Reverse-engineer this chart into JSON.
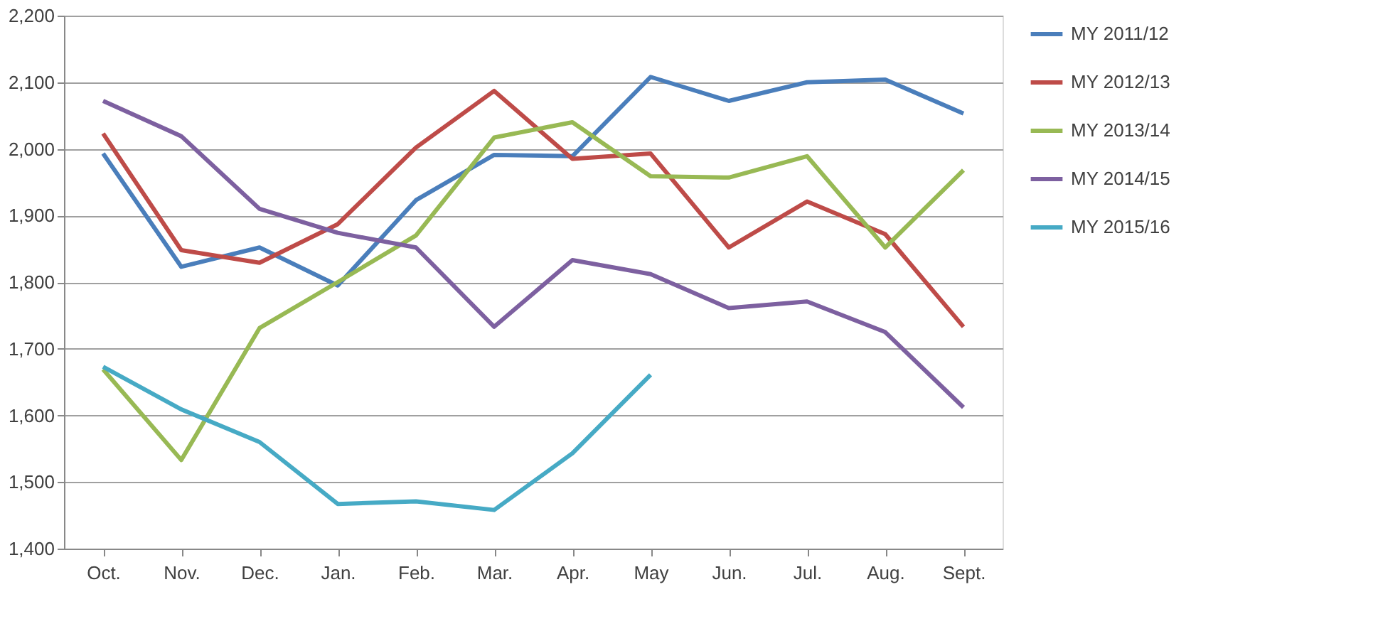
{
  "chart_data": {
    "type": "line",
    "categories": [
      "Oct.",
      "Nov.",
      "Dec.",
      "Jan.",
      "Feb.",
      "Mar.",
      "Apr.",
      "May",
      "Jun.",
      "Jul.",
      "Aug.",
      "Sept."
    ],
    "series": [
      {
        "name": "MY 2011/12",
        "color": "#4a7ebb",
        "values": [
          1993,
          1823,
          1852,
          1795,
          1923,
          1991,
          1989,
          2108,
          2072,
          2100,
          2104,
          2053
        ]
      },
      {
        "name": "MY 2012/13",
        "color": "#be4b48",
        "values": [
          2023,
          1848,
          1829,
          1887,
          2002,
          2087,
          1985,
          1993,
          1852,
          1921,
          1872,
          1733
        ]
      },
      {
        "name": "MY 2013/14",
        "color": "#98b954",
        "values": [
          1669,
          1533,
          1731,
          1800,
          1870,
          2017,
          2040,
          1959,
          1957,
          1989,
          1852,
          1968
        ]
      },
      {
        "name": "MY 2014/15",
        "color": "#7d60a0",
        "values": [
          2072,
          2019,
          1910,
          1874,
          1852,
          1733,
          1833,
          1812,
          1761,
          1771,
          1725,
          1612
        ]
      },
      {
        "name": "MY 2015/16",
        "color": "#46aac5",
        "values": [
          1673,
          1609,
          1560,
          1467,
          1471,
          1458,
          1543,
          1661,
          null,
          null,
          null,
          null
        ]
      }
    ],
    "ylim": [
      1400,
      2200
    ],
    "yticks": [
      {
        "value": 1400,
        "label": "1,400"
      },
      {
        "value": 1500,
        "label": "1,500"
      },
      {
        "value": 1600,
        "label": "1,600"
      },
      {
        "value": 1700,
        "label": "1,700"
      },
      {
        "value": 1800,
        "label": "1,800"
      },
      {
        "value": 1900,
        "label": "1,900"
      },
      {
        "value": 2000,
        "label": "2,000"
      },
      {
        "value": 2100,
        "label": "2,100"
      },
      {
        "value": 2200,
        "label": "2,200"
      }
    ],
    "grid": "y",
    "legend": "right",
    "marker": "none",
    "line_style": "solid"
  }
}
